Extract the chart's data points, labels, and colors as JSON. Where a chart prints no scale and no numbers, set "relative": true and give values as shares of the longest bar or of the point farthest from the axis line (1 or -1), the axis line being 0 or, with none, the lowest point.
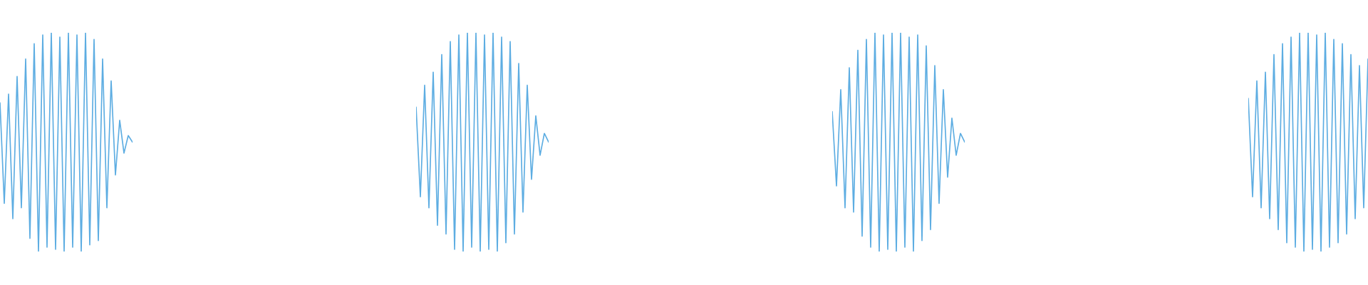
{
  "chart_data": [
    {
      "type": "line",
      "relative": true,
      "marker": "none",
      "line_style": "solid",
      "categories": [
        null,
        null,
        null,
        null,
        null,
        null,
        null,
        null,
        null,
        null,
        null,
        null,
        null,
        null,
        null,
        null,
        null,
        null,
        null,
        null,
        null,
        null,
        null,
        null,
        null,
        null,
        null,
        null,
        null,
        null,
        null,
        null
      ],
      "series": [
        {
          "color": "#5dade2",
          "values": [
            0.68,
            0.22,
            0.72,
            0.15,
            0.8,
            0.2,
            0.88,
            0.06,
            0.95,
            0.0,
            0.99,
            0.02,
            1.0,
            0.01,
            0.98,
            0.0,
            1.0,
            0.02,
            0.99,
            0.0,
            1.0,
            0.03,
            0.97,
            0.05,
            0.88,
            0.2,
            0.78,
            0.35,
            0.6,
            0.45,
            0.53,
            0.5
          ]
        }
      ]
    },
    {
      "type": "line",
      "relative": true,
      "marker": "none",
      "line_style": "solid",
      "categories": [
        null,
        null,
        null,
        null,
        null,
        null,
        null,
        null,
        null,
        null,
        null,
        null,
        null,
        null,
        null,
        null,
        null,
        null,
        null,
        null,
        null,
        null,
        null,
        null,
        null,
        null,
        null,
        null,
        null,
        null,
        null,
        null
      ],
      "series": [
        {
          "color": "#5dade2",
          "values": [
            0.66,
            0.25,
            0.76,
            0.2,
            0.82,
            0.12,
            0.9,
            0.08,
            0.96,
            0.01,
            0.99,
            0.0,
            1.0,
            0.02,
            1.0,
            0.0,
            0.99,
            0.01,
            1.0,
            0.0,
            0.98,
            0.04,
            0.96,
            0.08,
            0.86,
            0.18,
            0.76,
            0.33,
            0.62,
            0.44,
            0.54,
            0.5
          ]
        }
      ]
    },
    {
      "type": "line",
      "relative": true,
      "marker": "none",
      "line_style": "solid",
      "categories": [
        null,
        null,
        null,
        null,
        null,
        null,
        null,
        null,
        null,
        null,
        null,
        null,
        null,
        null,
        null,
        null,
        null,
        null,
        null,
        null,
        null,
        null,
        null,
        null,
        null,
        null,
        null,
        null,
        null,
        null,
        null,
        null
      ],
      "series": [
        {
          "color": "#5dade2",
          "values": [
            0.64,
            0.3,
            0.74,
            0.2,
            0.84,
            0.18,
            0.92,
            0.07,
            0.97,
            0.02,
            1.0,
            0.0,
            0.99,
            0.01,
            1.0,
            0.0,
            1.0,
            0.02,
            0.98,
            0.0,
            0.99,
            0.05,
            0.94,
            0.1,
            0.85,
            0.22,
            0.74,
            0.34,
            0.61,
            0.44,
            0.54,
            0.5
          ]
        }
      ]
    },
    {
      "type": "line",
      "relative": true,
      "marker": "none",
      "line_style": "solid",
      "categories": [
        null,
        null,
        null,
        null,
        null,
        null,
        null,
        null,
        null,
        null,
        null,
        null,
        null,
        null,
        null,
        null,
        null,
        null,
        null,
        null,
        null,
        null,
        null,
        null,
        null,
        null,
        null,
        null,
        null
      ],
      "series": [
        {
          "color": "#5dade2",
          "values": [
            0.7,
            0.25,
            0.78,
            0.2,
            0.82,
            0.15,
            0.9,
            0.1,
            0.95,
            0.04,
            0.98,
            0.02,
            1.0,
            0.0,
            1.0,
            0.01,
            0.99,
            0.0,
            1.0,
            0.02,
            0.97,
            0.04,
            0.95,
            0.08,
            0.9,
            0.15,
            0.85,
            0.2,
            0.88
          ]
        }
      ]
    }
  ]
}
